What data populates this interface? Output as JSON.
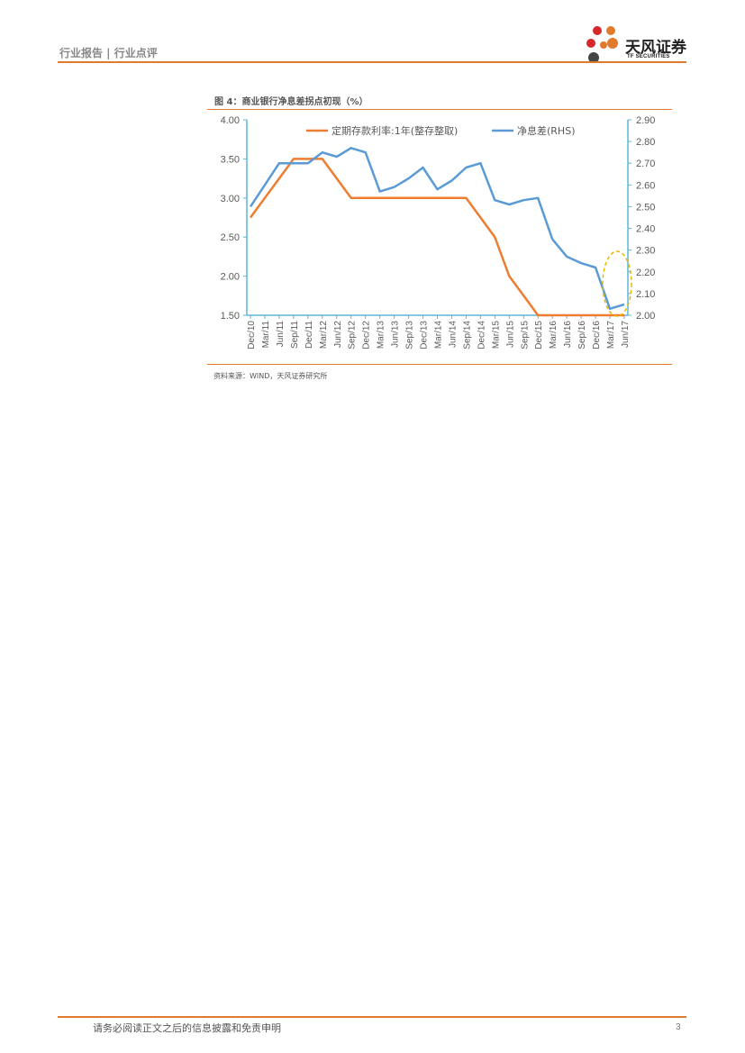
{
  "header": {
    "report_type": "行业报告 | 行业点评",
    "brand_name": "天风证券",
    "brand_sub": "TF SECURITIES"
  },
  "figure": {
    "title": "图 4：商业银行净息差拐点初现（%）",
    "source": "资料来源：WIND，天风证券研究所"
  },
  "footer": {
    "disclaimer": "请务必阅读正文之后的信息披露和免责申明",
    "page_number": "3"
  },
  "colors": {
    "accent": "#e07a2d",
    "series_deposit": "#ed7d31",
    "series_nim": "#5b9bd5",
    "highlight": "#e6b800"
  },
  "chart_data": {
    "type": "line",
    "title": "",
    "categories": [
      "Dec/10",
      "Mar/11",
      "Jun/11",
      "Sep/11",
      "Dec/11",
      "Mar/12",
      "Jun/12",
      "Sep/12",
      "Dec/12",
      "Mar/13",
      "Jun/13",
      "Sep/13",
      "Dec/13",
      "Mar/14",
      "Jun/14",
      "Sep/14",
      "Dec/14",
      "Mar/15",
      "Jun/15",
      "Sep/15",
      "Dec/15",
      "Mar/16",
      "Jun/16",
      "Sep/16",
      "Dec/16",
      "Mar/17",
      "Jun/17"
    ],
    "y_left": {
      "ylim": [
        1.5,
        4.0
      ],
      "ticks": [
        "1.50",
        "2.00",
        "2.50",
        "3.00",
        "3.50",
        "4.00"
      ]
    },
    "y_right": {
      "ylim": [
        2.0,
        2.9
      ],
      "ticks": [
        "2.00",
        "2.10",
        "2.20",
        "2.30",
        "2.40",
        "2.50",
        "2.60",
        "2.70",
        "2.80",
        "2.90"
      ]
    },
    "series": [
      {
        "name": "定期存款利率:1年(整存整取)",
        "axis": "left",
        "values": [
          2.75,
          3.0,
          3.25,
          3.5,
          3.5,
          3.5,
          3.25,
          3.0,
          3.0,
          3.0,
          3.0,
          3.0,
          3.0,
          3.0,
          3.0,
          3.0,
          2.75,
          2.5,
          2.0,
          1.75,
          1.5,
          1.5,
          1.5,
          1.5,
          1.5,
          1.5,
          1.5
        ]
      },
      {
        "name": "净息差(RHS)",
        "axis": "right",
        "values": [
          2.5,
          2.6,
          2.7,
          2.7,
          2.7,
          2.75,
          2.73,
          2.77,
          2.75,
          2.57,
          2.59,
          2.63,
          2.68,
          2.58,
          2.62,
          2.68,
          2.7,
          2.53,
          2.51,
          2.53,
          2.54,
          2.35,
          2.27,
          2.24,
          2.22,
          2.03,
          2.05
        ]
      }
    ],
    "legend": "top",
    "grid": false,
    "annotation": "dashed ellipse around Mar/17–Jun/17"
  }
}
